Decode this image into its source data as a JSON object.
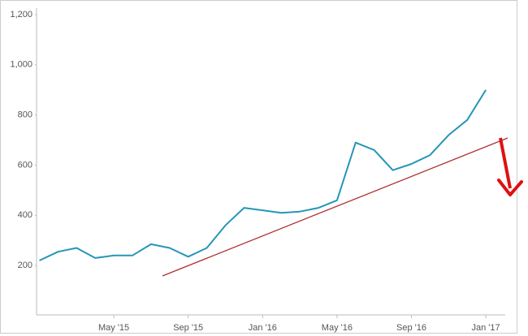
{
  "chart_data": {
    "type": "line",
    "x": [
      "2015-01",
      "2015-02",
      "2015-03",
      "2015-04",
      "2015-05",
      "2015-06",
      "2015-07",
      "2015-08",
      "2015-09",
      "2015-10",
      "2015-11",
      "2015-12",
      "2016-01",
      "2016-02",
      "2016-03",
      "2016-04",
      "2016-05",
      "2016-06",
      "2016-07",
      "2016-08",
      "2016-09",
      "2016-10",
      "2016-11",
      "2016-12",
      "2017-01"
    ],
    "series": [
      {
        "color": "#2596b8",
        "values": [
          220,
          255,
          270,
          230,
          240,
          240,
          285,
          270,
          235,
          270,
          360,
          430,
          420,
          410,
          415,
          430,
          460,
          690,
          660,
          580,
          605,
          640,
          720,
          780,
          900
        ]
      }
    ],
    "xlim": [
      "2015-01",
      "2017-02"
    ],
    "xticks": [
      {
        "value": "2015-05",
        "label": "May '15"
      },
      {
        "value": "2015-09",
        "label": "Sep '15"
      },
      {
        "value": "2016-01",
        "label": "Jan '16"
      },
      {
        "value": "2016-05",
        "label": "May '16"
      },
      {
        "value": "2016-09",
        "label": "Sep '16"
      },
      {
        "value": "2017-01",
        "label": "Jan '17"
      }
    ],
    "ylim": [
      0,
      1200
    ],
    "yticks": [
      200,
      400,
      600,
      800,
      {
        "value": 1000,
        "label": "1,000"
      },
      {
        "value": 1200,
        "label": "1,200"
      }
    ],
    "grid": false
  }
}
